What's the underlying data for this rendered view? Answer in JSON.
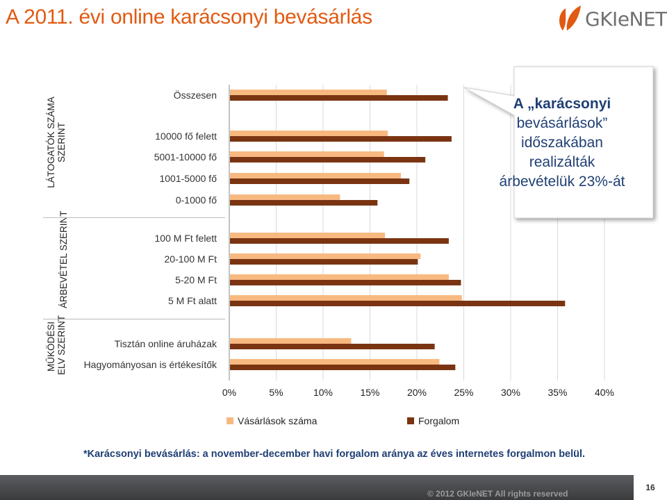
{
  "slide": {
    "title": "A 2011. évi online karácsonyi bevásárlás",
    "footnote": "*Karácsonyi bevásárlás: a november-december havi forgalom aránya az éves internetes forgalmon belül.",
    "footer_text": "© 2012 GKIeNET All rights reserved",
    "page_number": "16"
  },
  "logo": {
    "text": "GKIeNET",
    "icon": "leaf-logo-icon",
    "color": "#e15a12"
  },
  "groups": [
    {
      "label_lines": [
        "LÁTOGATÓK SZÁMA",
        "SZERINT"
      ]
    },
    {
      "label_lines": [
        "ÁRBEVÉTEL SZERINT"
      ]
    },
    {
      "label_lines": [
        "MŰKÖDÉSI",
        "ELV SZERINT"
      ]
    }
  ],
  "callout": {
    "line1": "A „karácsonyi",
    "line2": "bevásárlások”",
    "line3": "időszakában",
    "line4": "realizálták",
    "line5": "árbevételük 23%-át"
  },
  "chart_data": {
    "type": "bar",
    "orientation": "horizontal",
    "categories": [
      "Összesen",
      "10000 fő felett",
      "5001-10000 fő",
      "1001-5000 fő",
      "0-1000 fő",
      "100 M Ft felett",
      "20-100 M Ft",
      "5-20 M Ft",
      "5 M Ft alatt",
      "Tisztán online áruházak",
      "Hagyományosan is értékesítők"
    ],
    "series": [
      {
        "name": "Vásárlások száma",
        "color": "#f8b981",
        "values": [
          16.8,
          16.9,
          16.5,
          18.3,
          11.8,
          16.6,
          20.4,
          23.4,
          24.8,
          13.0,
          22.4
        ]
      },
      {
        "name": "Forgalom",
        "color": "#7a3412",
        "values": [
          23.3,
          23.7,
          20.9,
          19.2,
          15.8,
          23.4,
          20.1,
          24.7,
          35.8,
          21.9,
          24.1
        ]
      }
    ],
    "xlim": [
      0,
      40
    ],
    "xticks": [
      "0%",
      "5%",
      "10%",
      "15%",
      "20%",
      "25%",
      "30%",
      "35%",
      "40%"
    ],
    "legend": "bottom"
  }
}
